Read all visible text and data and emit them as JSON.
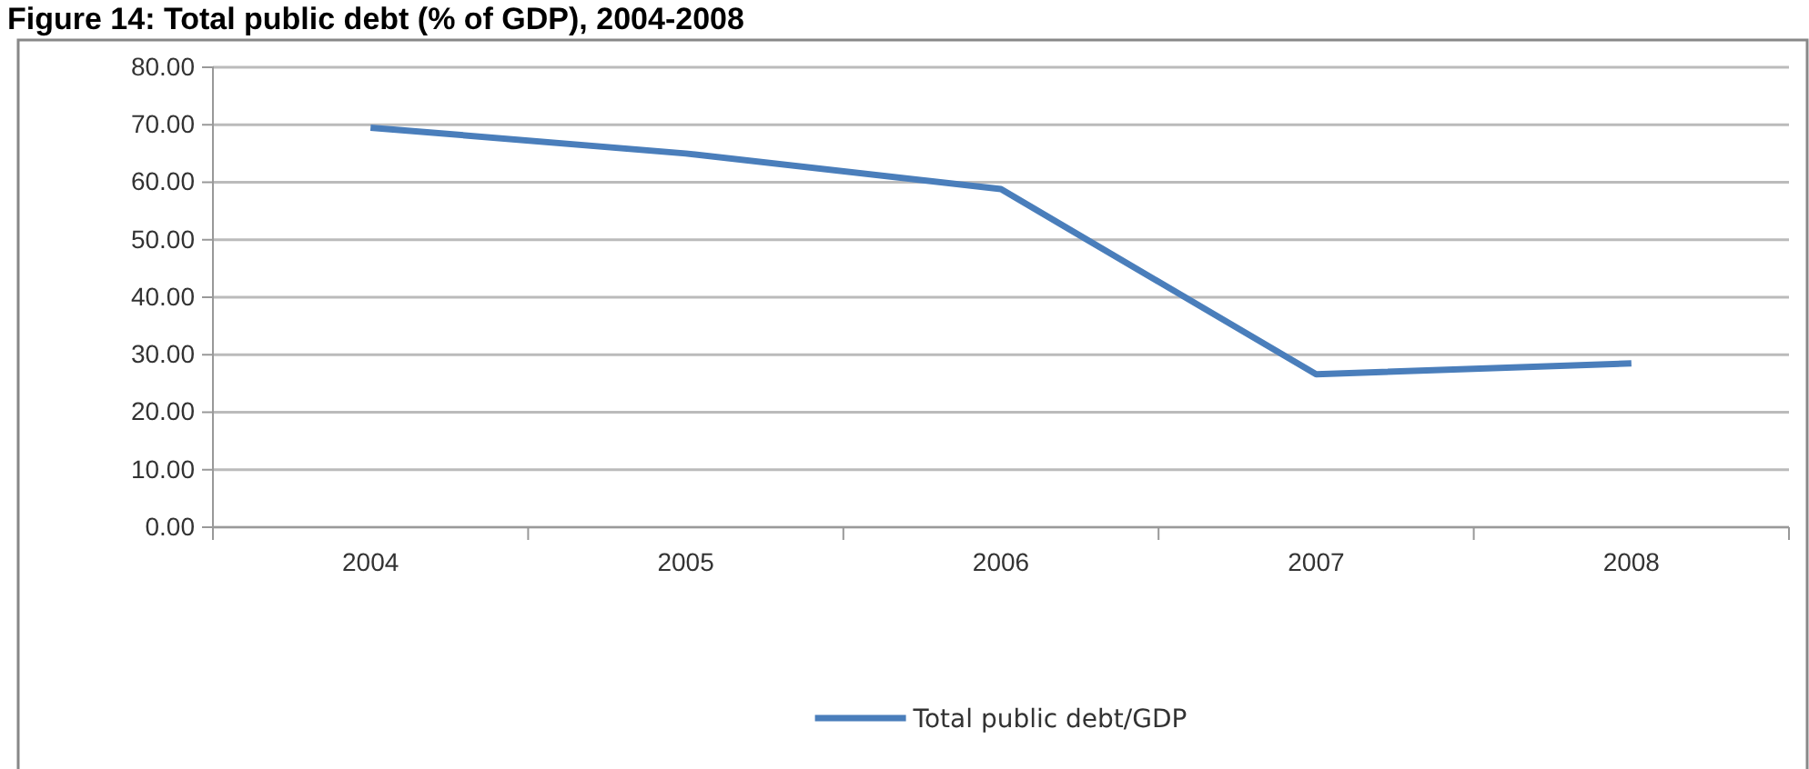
{
  "chart_data": {
    "type": "line",
    "title": "Figure 14: Total public debt (% of GDP), 2004-2008",
    "categories": [
      "2004",
      "2005",
      "2006",
      "2007",
      "2008"
    ],
    "series": [
      {
        "name": "Total public debt/GDP",
        "color": "#4a7ebb",
        "values": [
          69.5,
          65,
          58.8,
          26.6,
          28.5
        ]
      }
    ],
    "ylim": [
      0,
      80
    ],
    "yticks": [
      {
        "value": 0,
        "label": "0.00"
      },
      {
        "value": 10,
        "label": "10.00"
      },
      {
        "value": 20,
        "label": "20.00"
      },
      {
        "value": 30,
        "label": "30.00"
      },
      {
        "value": 40,
        "label": "40.00"
      },
      {
        "value": 50,
        "label": "50.00"
      },
      {
        "value": 60,
        "label": "60.00"
      },
      {
        "value": 70,
        "label": "70.00"
      },
      {
        "value": 80,
        "label": "80.00"
      }
    ],
    "grid": "y",
    "legend": "bottom",
    "marker": "none",
    "line_style": "solid"
  }
}
